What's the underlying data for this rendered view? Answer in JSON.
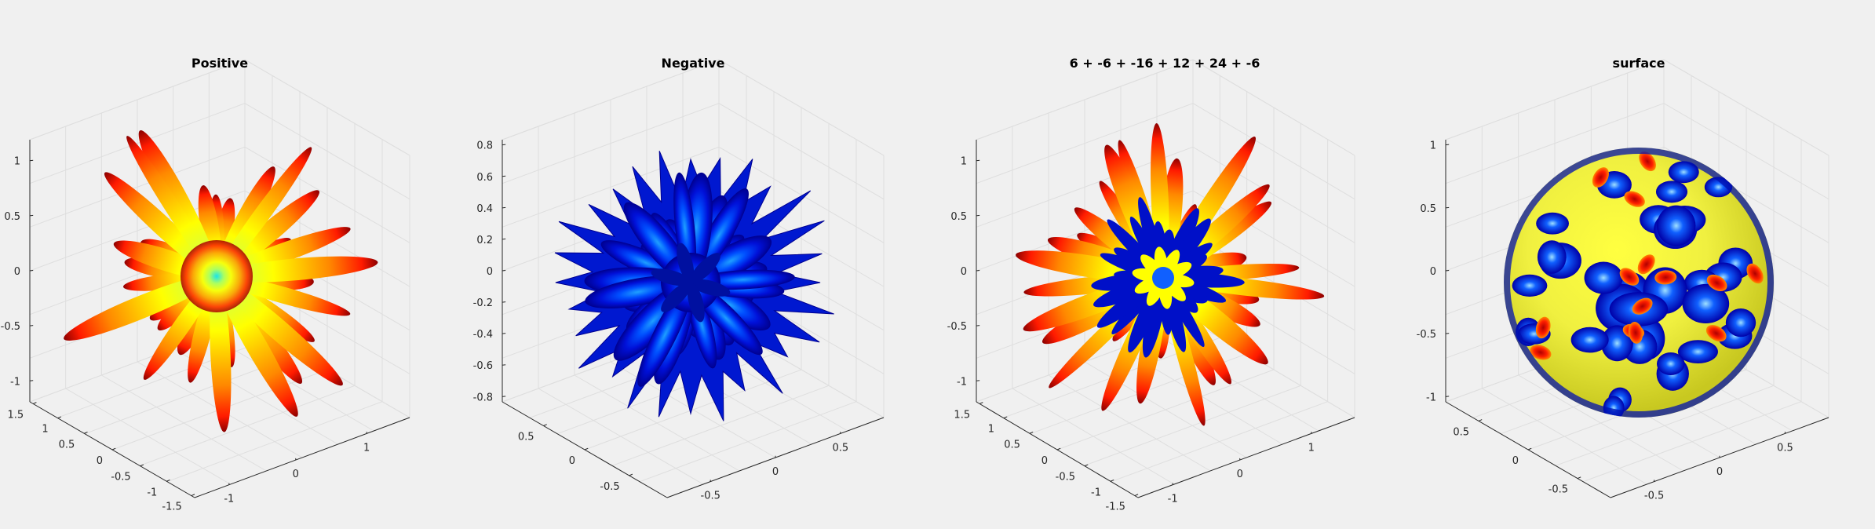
{
  "figure": {
    "background": "#f0f0f0"
  },
  "chart_data": [
    {
      "type": "3d-surface",
      "title": "Positive",
      "surface_kind": "spiky",
      "colormap": "jet",
      "color_range": "upper",
      "grid": true,
      "axes": {
        "x": {
          "ticks": [
            1.5,
            1,
            0.5,
            0,
            -0.5,
            -1,
            -1.5
          ],
          "labels": [
            "1.5",
            "1",
            "0.5",
            "0",
            "-0.5",
            "-1",
            "-1.5"
          ]
        },
        "y": {
          "ticks": [
            -1,
            0,
            1
          ],
          "labels": [
            "-1",
            "0",
            "1"
          ]
        },
        "z": {
          "ticks": [
            1,
            0.5,
            0,
            -0.5,
            -1
          ],
          "labels": [
            "1",
            "0.5",
            "0",
            "-0.5",
            "-1"
          ]
        }
      }
    },
    {
      "type": "3d-surface",
      "title": "Negative",
      "surface_kind": "dense",
      "colormap": "jet",
      "color_range": "lower",
      "grid": true,
      "axes": {
        "x": {
          "ticks": [
            0.5,
            0,
            -0.5
          ],
          "labels": [
            "0.5",
            "0",
            "-0.5"
          ]
        },
        "y": {
          "ticks": [
            -0.5,
            0,
            0.5
          ],
          "labels": [
            "-0.5",
            "0",
            "0.5"
          ]
        },
        "z": {
          "ticks": [
            0.8,
            0.6,
            0.4,
            0.2,
            0,
            -0.2,
            -0.4,
            -0.6,
            -0.8
          ],
          "labels": [
            "0.8",
            "0.6",
            "0.4",
            "0.2",
            "0",
            "-0.2",
            "-0.4",
            "-0.6",
            "-0.8"
          ]
        }
      }
    },
    {
      "type": "3d-surface",
      "title": "6 + -6 + -16 + 12 + 24 + -6",
      "surface_kind": "combined",
      "colormap": "jet",
      "color_range": "full",
      "grid": true,
      "axes": {
        "x": {
          "ticks": [
            1.5,
            1,
            0.5,
            0,
            -0.5,
            -1,
            -1.5
          ],
          "labels": [
            "1.5",
            "1",
            "0.5",
            "0",
            "-0.5",
            "-1",
            "-1.5"
          ]
        },
        "y": {
          "ticks": [
            -1,
            0,
            1
          ],
          "labels": [
            "-1",
            "0",
            "1"
          ]
        },
        "z": {
          "ticks": [
            1,
            0.5,
            0,
            -0.5,
            -1
          ],
          "labels": [
            "1",
            "0.5",
            "0",
            "-0.5",
            "-1"
          ]
        }
      }
    },
    {
      "type": "3d-surface",
      "title": "surface",
      "surface_kind": "sphere",
      "colormap": "jet",
      "color_range": "full",
      "grid": true,
      "axes": {
        "x": {
          "ticks": [
            0.5,
            0,
            -0.5
          ],
          "labels": [
            "0.5",
            "0",
            "-0.5"
          ]
        },
        "y": {
          "ticks": [
            -0.5,
            0,
            0.5
          ],
          "labels": [
            "-0.5",
            "0",
            "0.5"
          ]
        },
        "z": {
          "ticks": [
            1,
            0.5,
            0,
            -0.5,
            -1
          ],
          "labels": [
            "1",
            "0.5",
            "0",
            "-0.5",
            "-1"
          ]
        }
      }
    }
  ]
}
